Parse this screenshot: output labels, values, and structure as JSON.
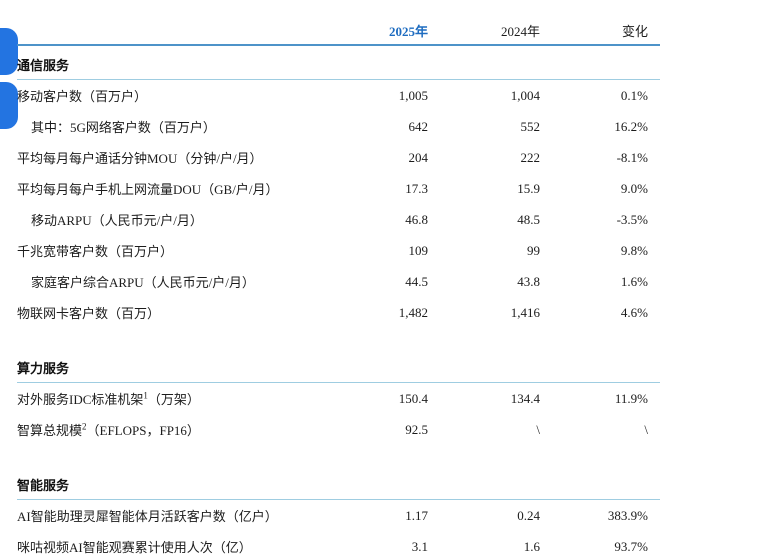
{
  "colors": {
    "accent_blue": "#1e6cc0",
    "header_rule_blue": "#4e93c9",
    "section_rule_blue": "#9fcde1",
    "floating_button_blue": "#2374e1"
  },
  "table": {
    "columns": {
      "c2025": "2025年",
      "c2024": "2024年",
      "change": "变化"
    },
    "sections": [
      {
        "title": "通信服务",
        "rows": [
          {
            "label": "移动客户数（百万户）",
            "sup": "",
            "suffix": "",
            "indent": false,
            "v2025": "1,005",
            "v2024": "1,004",
            "change": "0.1%"
          },
          {
            "label": "其中：5G网络客户数（百万户）",
            "sup": "",
            "suffix": "",
            "indent": true,
            "v2025": "642",
            "v2024": "552",
            "change": "16.2%"
          },
          {
            "label": "平均每月每户通话分钟MOU（分钟/户/月）",
            "sup": "",
            "suffix": "",
            "indent": false,
            "v2025": "204",
            "v2024": "222",
            "change": "-8.1%"
          },
          {
            "label": "平均每月每户手机上网流量DOU（GB/户/月）",
            "sup": "",
            "suffix": "",
            "indent": false,
            "v2025": "17.3",
            "v2024": "15.9",
            "change": "9.0%"
          },
          {
            "label": "移动ARPU（人民币元/户/月）",
            "sup": "",
            "suffix": "",
            "indent": true,
            "v2025": "46.8",
            "v2024": "48.5",
            "change": "-3.5%"
          },
          {
            "label": "千兆宽带客户数（百万户）",
            "sup": "",
            "suffix": "",
            "indent": false,
            "v2025": "109",
            "v2024": "99",
            "change": "9.8%"
          },
          {
            "label": "家庭客户综合ARPU（人民币元/户/月）",
            "sup": "",
            "suffix": "",
            "indent": true,
            "v2025": "44.5",
            "v2024": "43.8",
            "change": "1.6%"
          },
          {
            "label": "物联网卡客户数（百万）",
            "sup": "",
            "suffix": "",
            "indent": false,
            "v2025": "1,482",
            "v2024": "1,416",
            "change": "4.6%"
          }
        ]
      },
      {
        "title": "算力服务",
        "rows": [
          {
            "label": "对外服务IDC标准机架",
            "sup": "1",
            "suffix": "（万架）",
            "indent": false,
            "v2025": "150.4",
            "v2024": "134.4",
            "change": "11.9%"
          },
          {
            "label": "智算总规模",
            "sup": "2",
            "suffix": "（EFLOPS，FP16）",
            "indent": false,
            "v2025": "92.5",
            "v2024": "\\",
            "change": "\\"
          }
        ]
      },
      {
        "title": "智能服务",
        "rows": [
          {
            "label": "AI智能助理灵犀智能体月活跃客户数（亿户）",
            "sup": "",
            "suffix": "",
            "indent": false,
            "v2025": "1.17",
            "v2024": "0.24",
            "change": "383.9%"
          },
          {
            "label": "咪咕视频AI智能观赛累计使用人次（亿）",
            "sup": "",
            "suffix": "",
            "indent": false,
            "v2025": "3.1",
            "v2024": "1.6",
            "change": "93.7%"
          }
        ]
      }
    ]
  }
}
